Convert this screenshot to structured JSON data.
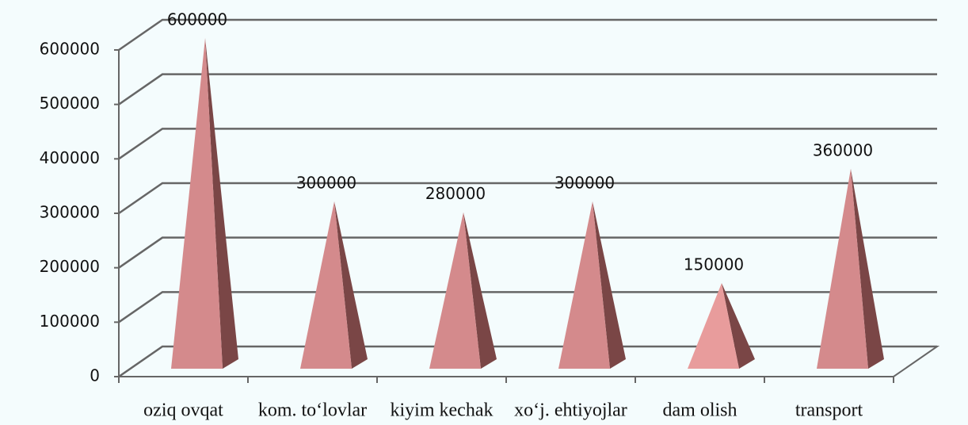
{
  "chart_data": {
    "type": "pyramid3d",
    "categories": [
      "oziq ovqat",
      "kom. to‘lovlar",
      "kiyim kechak",
      "xo‘j. ehtiyojlar",
      "dam olish",
      "transport"
    ],
    "values": [
      600000,
      300000,
      280000,
      300000,
      150000,
      360000
    ],
    "colors": [
      "#d48a8c",
      "#d48a8c",
      "#d48a8c",
      "#d48a8c",
      "#e89c9c",
      "#d48a8c"
    ],
    "ylim": [
      0,
      600000
    ],
    "yticks": [
      0,
      100000,
      200000,
      300000,
      400000,
      500000,
      600000
    ],
    "grid": true
  }
}
